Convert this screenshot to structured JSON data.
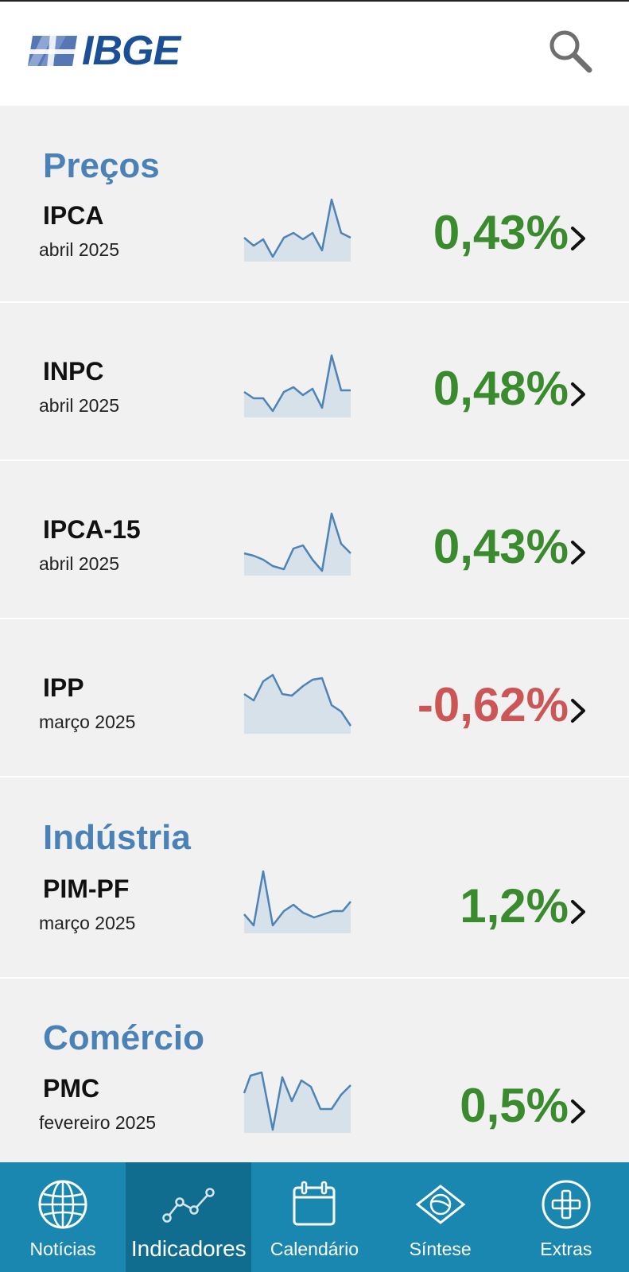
{
  "header": {
    "logo_text": "IBGE"
  },
  "sections": [
    {
      "title": "Preços",
      "color": "#4a82b7"
    },
    {
      "title": "Indústria",
      "color": "#4a82b7"
    },
    {
      "title": "Comércio",
      "color": "#4a82b7"
    }
  ],
  "indicators": [
    {
      "name": "IPCA",
      "date": "abril 2025",
      "value": "0,43%",
      "color": "#3a8a2e"
    },
    {
      "name": "INPC",
      "date": "abril 2025",
      "value": "0,48%",
      "color": "#3a8a2e"
    },
    {
      "name": "IPCA-15",
      "date": "abril 2025",
      "value": "0,43%",
      "color": "#3a8a2e"
    },
    {
      "name": "IPP",
      "date": "março 2025",
      "value": "-0,62%",
      "color": "#cc5555"
    },
    {
      "name": "PIM-PF",
      "date": "março 2025",
      "value": "1,2%",
      "color": "#3a8a2e"
    },
    {
      "name": "PMC",
      "date": "fevereiro 2025",
      "value": "0,5%",
      "color": "#3a8a2e"
    }
  ],
  "nav": {
    "items": [
      {
        "label": "Notícias",
        "icon": "globe-icon"
      },
      {
        "label": "Indicadores",
        "icon": "line-chart-icon",
        "active": true
      },
      {
        "label": "Calendário",
        "icon": "calendar-icon"
      },
      {
        "label": "Síntese",
        "icon": "brazil-flag-icon"
      },
      {
        "label": "Extras",
        "icon": "plus-circle-icon"
      }
    ],
    "background": "#1987b0",
    "active_background": "#116d8f"
  },
  "colors": {
    "positive": "#3a8a2e",
    "negative": "#cc5555",
    "spark_line": "#4d83b6",
    "spark_fill": "#cfdde9"
  }
}
